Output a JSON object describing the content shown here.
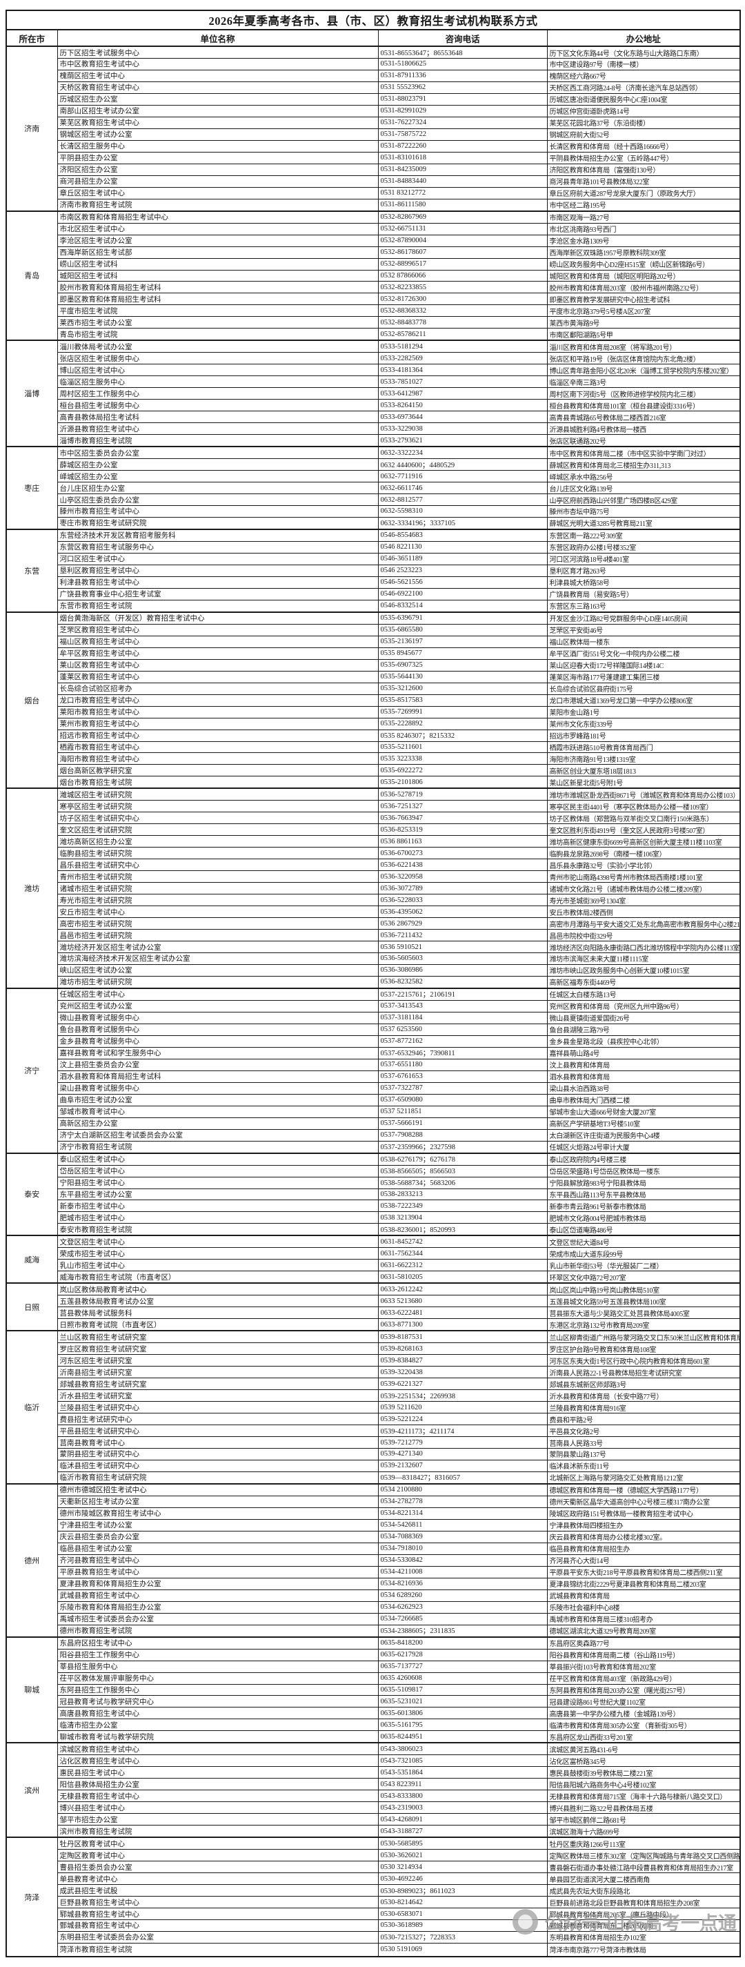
{
  "title": "2026年夏季高考各市、县（市、区）教育招生考试机构联系方式",
  "columns": [
    "所在市",
    "单位名称",
    "咨询电话",
    "办公地址"
  ],
  "watermark": {
    "text": "公众号·山东高考一点通"
  },
  "groups": [
    {
      "city": "济南",
      "rows": [
        [
          "历下区招生考试服务中心",
          "0531-86553647；86553648",
          "历下区文化东路44号（文化东路与山大路路口东南）"
        ],
        [
          "市中区教育招生考试中心",
          "0531-51806625",
          "市中区建设路97号（南楼一楼）"
        ],
        [
          "槐荫区招生考试中心",
          "0531-87911336",
          "槐荫区经六路667号"
        ],
        [
          "天桥区教育招生考试中心",
          "0531 55523962",
          "天桥区西工商河路24-8号（济南长途汽车总站西邻）"
        ],
        [
          "历城区招生办公室",
          "0531-88023791",
          "历城区唐冶街道便民服务中心C座1004室"
        ],
        [
          "南部山区招生考试办公室",
          "0531-82991029",
          "历城区仲宫街道卧虎路14号"
        ],
        [
          "莱芜区教育招生考试中心",
          "0531-76227324",
          "莱芜区花园北路37号（东沿街楼）"
        ],
        [
          "钢城区招生考试办公室",
          "0531-75875722",
          "钢城区府前大街52号"
        ],
        [
          "长清区招生服务中心",
          "0531-87222260",
          "长清区教育和体育局（经十西路16666号）"
        ],
        [
          "平阴县招生办公室",
          "0531-83101618",
          "平阴县教体局招生办公室（五岭路447号）"
        ],
        [
          "济阳区招生办公室",
          "0531-84235009",
          "济阳区教育和体育局（富强街130号）"
        ],
        [
          "商河县招生办公室",
          "0531-84883440",
          "商河县青年路101号县教体局322室"
        ],
        [
          "章丘区招生考试中心",
          "0531 83212772",
          "章丘区府前大道287号龙泉大厦东门（原政务大厅）"
        ],
        [
          "济南市教育招生考试院",
          "0531-86111580",
          "市中区经二路195号"
        ]
      ]
    },
    {
      "city": "青岛",
      "rows": [
        [
          "市南区教育和体育局招生考试中心",
          "0532-82867969",
          "市南区观海一路27号"
        ],
        [
          "市北区招生考试中心",
          "0532-66751131",
          "市北区洮南路93号西门"
        ],
        [
          "李沧区招生考试办公室",
          "0532-87890004",
          "李沧区金水路1309号"
        ],
        [
          "西海岸新区招生考试部",
          "0532-86178607",
          "西海岸新区双珠路1957号原教科院309室"
        ],
        [
          "崂山区招生考试科",
          "0532-88996517",
          "崂山区政务服务中心D2座H515室（崂山区新锦路6号）"
        ],
        [
          "城阳区招生考试科",
          "0532 87866066",
          "城阳区教育和体育局（城阳区明阳路202号）"
        ],
        [
          "胶州市教育和体育局招生考试科",
          "0532-82233855",
          "胶州市教育和体育局203室（胶州市福州南路232号）"
        ],
        [
          "即墨区教育和体育局招生考试科",
          "0532-81726300",
          "即墨区教育教学发展研究中心招生考试科"
        ],
        [
          "平度市招生考试院",
          "0532-88368332",
          "平度市北京路379号5号楼A区207室"
        ],
        [
          "莱西市招生考试办公室",
          "0532-88483778",
          "莱西市黄海路9号"
        ],
        [
          "青岛市招生考试院",
          "0532-85786211",
          "市南区鄱阳湖路5号甲"
        ]
      ]
    },
    {
      "city": "淄博",
      "rows": [
        [
          "淄川教体局考试办公室",
          "0533-5181294",
          "淄川区教育和体育局208室（将军路201号）"
        ],
        [
          "张店区招生考试服务中心",
          "0533-2282569",
          "张店区和平路19号（张店区体育馆院内东北角2楼）"
        ],
        [
          "博山区招生考试中心",
          "0533-4181364",
          "博山区青年路金阳小区北20米（淄博工贸学校院内东楼202室）"
        ],
        [
          "临淄区招生服务中心",
          "0533-7851027",
          "临淄区辛南三路3号"
        ],
        [
          "周村区招生工作服务中心",
          "0533-6412987",
          "周村区南下河街5号（区教师进修学校院内北三楼）"
        ],
        [
          "桓台县招生考试服务中心",
          "0533-8264150",
          "桓台县教育和体育局101室（桓台县建设街3316号）"
        ],
        [
          "高青县教体局招生考试科",
          "0533-6973644",
          "高青县青城路65号教体局二楼西首216室"
        ],
        [
          "沂源县教育招生考试中心",
          "0533-3229038",
          "沂源县城胜利路4号教体局一楼西"
        ],
        [
          "淄博市教育招生考试院",
          "0533-2793621",
          "张店区联通路202号"
        ]
      ]
    },
    {
      "city": "枣庄",
      "rows": [
        [
          "市中区招生委员会办公室",
          "0632-3322234",
          "市中区教育和体育局二楼（市中区实验中学南门对过）"
        ],
        [
          "薛城区招生办公室",
          "0632 4440600；4480529",
          "薛城区教育和体育局北三楼招生办311,313"
        ],
        [
          "峄城区招生办公室",
          "0632-7711916",
          "峄城区承水中路256号"
        ],
        [
          "台儿庄区招生办公室",
          "0632-6611746",
          "台儿庄区文化路139号"
        ],
        [
          "山亭区招生委员会办公室",
          "0632-8812577",
          "山亭区府前西路山兴邻里广场四楼B区429室"
        ],
        [
          "滕州市教育招生考试中心",
          "0632-5598310",
          "滕州市杏坛中路75号"
        ],
        [
          "枣庄市教育招生考试研究院",
          "0632-3334196；3337105",
          "薛城区光明大道3285号教育局211室"
        ]
      ]
    },
    {
      "city": "东营",
      "rows": [
        [
          "东营经济技术开发区教育招考服务科",
          "0546-8554683",
          "东营区南一路222号309室"
        ],
        [
          "东营区教育招生考试服务中心",
          "0546 8221130",
          "东营区政府办公楼1号楼352室"
        ],
        [
          "河口区招生考试中心",
          "0546-3651189",
          "河口区河滨路18号4楼401室"
        ],
        [
          "垦利区教育招生考试中心",
          "0546 2523223",
          "垦利区育才路263号"
        ],
        [
          "利津县教育招生考试中心",
          "0546-5621556",
          "利津县城大桥路58号"
        ],
        [
          "广饶县教育事业中心招生考试室",
          "0546-6922100",
          "广饶县教育局（易安路5号）"
        ],
        [
          "东营市教育招生考试院",
          "0546-8332514",
          "东营区东三路163号"
        ]
      ]
    },
    {
      "city": "烟台",
      "rows": [
        [
          "烟台黄渤海新区（开发区）教育招生考试中心",
          "0535-6396791",
          "开发区金沙江路82号党群服务中心D座1405房间"
        ],
        [
          "芝罘区教育招生考试中心",
          "0535-6865580",
          "芝罘区平安街46号"
        ],
        [
          "福山区教育招生考试中心",
          "0535-2136197",
          "福山区教体局一楼东"
        ],
        [
          "牟平区教育招生考试中心",
          "0535 8945677",
          "牟平区酒厂街551号文化一中院内办公楼二楼"
        ],
        [
          "莱山区教育招生考试中心",
          "0535-6907325",
          "莱山区迎春大街172号祥隆国际14楼14C"
        ],
        [
          "蓬莱区教育招生考试中心",
          "0535-5644130",
          "蓬莱区海市路177号蓬建建工集团三楼"
        ],
        [
          "长岛综合试验区招考办",
          "0535-3212600",
          "长岛综合试验区县府街175号"
        ],
        [
          "龙口市教育招生考试中心",
          "0535-8517583",
          "龙口市港城大道1369号龙口第一中学办公楼806室"
        ],
        [
          "莱阳市教育招生考试中心",
          "0535-7269991",
          "莱阳市金山路1号"
        ],
        [
          "莱州市教育招生考试中心",
          "0535-2228892",
          "莱州市文化东街339号"
        ],
        [
          "招远市教育招生考试中心",
          "0535 8246307；8215332",
          "招远市罗峰路181号"
        ],
        [
          "栖霞市教育招生考试中心",
          "0535-5211601",
          "栖霞市跃进路510号教育体育局西门"
        ],
        [
          "海阳市教育招生考试中心",
          "0535 3223338",
          "海阳市济南路91号13楼1319室"
        ],
        [
          "烟台高新区教学研究室",
          "0535-6922272",
          "高新区创业大厦东塔18层1813"
        ],
        [
          "烟台市教育招生考试院",
          "0535-2101806",
          "莱山区新星北街5号附1号"
        ]
      ]
    },
    {
      "city": "潍坊",
      "rows": [
        [
          "潍城区招生考试研究院",
          "0536-5278719",
          "潍坊市潍城区卧龙西街8671号（潍城区教育和体育局办公楼103）"
        ],
        [
          "寒亭区招生考试研究院",
          "0536-7251327",
          "寒亭区民主街4401号（寒亭区教体局办公楼一楼109室）"
        ],
        [
          "坊子区招生考试研究中心",
          "0536-7663947",
          "坊子区教体局（郑营路与双羊街交叉口南行150米路东）"
        ],
        [
          "奎文区招生考试研究院",
          "0536-8253319",
          "奎文区胜利东街4919号（奎文区人民政府3号楼507室）"
        ],
        [
          "潍坊高新区招生办公室",
          "0536 8861163",
          "潍坊高新区健康东街6699号高新区创新大厦主楼11楼1103室"
        ],
        [
          "临朐县招生考试研究院",
          "0536-6700273",
          "临朐县龙泉路2698号（南楼一楼106室）"
        ],
        [
          "昌乐县招生考试研究中心",
          "0536-6221438",
          "昌乐县永康路32号（实验小学北邻）"
        ],
        [
          "青州市招生考试研究院",
          "0536-3220958",
          "青州市驼山南路4398号青州市教体局西南楼1楼101室"
        ],
        [
          "诸城市招生考试研究院",
          "0536-3072789",
          "诸城市文化路21号（诸城市教体局办公楼二楼209室）"
        ],
        [
          "寿光市招生考试研究院",
          "0536-5228033",
          "寿光市圣城街369号1304室"
        ],
        [
          "安丘市招生考试中心",
          "0536-4395062",
          "安丘市教体局2楼西侧"
        ],
        [
          "高密市招生考试研究院",
          "0536 2867929",
          "高密市月潭路与平安大道交汇处东北角高密市教育服务中心2楼212室"
        ],
        [
          "昌邑市招生考试研究院",
          "0536-7211432",
          "昌邑市院校中街329号"
        ],
        [
          "潍坊经济开发区招生考试办公室",
          "0536 5910521",
          "潍坊经济区向阳路永康街路口西北潍坊锦程中学院内办公楼113室"
        ],
        [
          "潍坊滨海经济技术开发区招生考试办公室",
          "0536-5605603",
          "潍坊市滨海区未来大厦11楼1115室"
        ],
        [
          "峡山区招生考试办公室",
          "0536-3086986",
          "潍坊市峡山区政务服务中心创新大厦10楼1015室"
        ],
        [
          "潍坊市招生考试研究院",
          "0536-8232582",
          "高新区福寿东街4469号"
        ]
      ]
    },
    {
      "city": "济宁",
      "rows": [
        [
          "任城区招生考试中心",
          "0537-2215761；2106191",
          "任城区太白楼东路13号"
        ],
        [
          "兖州区招生考试办公室",
          "0537-3413543",
          "兖州区教育和体育局（兖州区九州中路96号）"
        ],
        [
          "微山县教育考试服务中心",
          "0537-3181184",
          "微山县夏镇街道爱国街26号"
        ],
        [
          "鱼台县教育考试服务中心",
          "0537 6253560",
          "鱼台县湖陵三路79号"
        ],
        [
          "金乡县教育考试服务中心",
          "0537-8772162",
          "金乡县金星路北段（县疾控中心北邻）"
        ],
        [
          "嘉祥县教育考试和学生服务中心",
          "0537-6532946；7390811",
          "嘉祥县萌山路4号"
        ],
        [
          "汶上县招生委员会办公室",
          "0537-6551180",
          "汶上县教育和体育局"
        ],
        [
          "泗水县教育和体育局招生考试科",
          "0537-6761653",
          "泗水县教育和体育局"
        ],
        [
          "梁山县教育考试服务中心",
          "0537-7322787",
          "梁山县水泊西路38号"
        ],
        [
          "曲阜市招生考试办公室",
          "0537-6509080",
          "曲阜市教体局大门西楼二楼"
        ],
        [
          "邹城市教育考试中心",
          "0537 5211851",
          "邹城市金山大道666号财金大厦207室"
        ],
        [
          "高新区招生办公室",
          "0537-5666191",
          "高新区产学研基地T3号楼510室"
        ],
        [
          "济宁太白湖新区招生考试委员会办公室",
          "0537-7908288",
          "太白湖新区许庄街道为民服务中心4楼"
        ],
        [
          "济宁市教育招生考试院",
          "0537-2359966；2327598",
          "任城区火炬路24号审计大厦"
        ]
      ]
    },
    {
      "city": "泰安",
      "rows": [
        [
          "泰山区招生考试中心",
          "0538-6276179；6276178",
          "泰山区政府院内4号楼三楼"
        ],
        [
          "岱岳区招生考试中心",
          "0538-8566505；8566503",
          "岱岳区荣盛路1号岱岳区教体局一楼东"
        ],
        [
          "宁阳县招生考试中心",
          "0538-5688734；5683206",
          "宁阳县解放路983号宁阳县教体局"
        ],
        [
          "东平县招生考试办公室",
          "0538-2833213",
          "东平县西山路113号东平县教体局"
        ],
        [
          "新泰市招生考试中心",
          "0538-7222349",
          "新泰市青云路961号新泰市教体局"
        ],
        [
          "肥城市招生考试中心",
          "0538 3213904",
          "肥城市文化路004号肥城市教体局"
        ],
        [
          "泰安市教育招生考试院",
          "0538-8236001；8520993",
          "泰山区岱道庵路486号"
        ]
      ]
    },
    {
      "city": "威海",
      "rows": [
        [
          "文登区招生考试中心",
          "0631-8452742",
          "文登区世纪大道84号"
        ],
        [
          "荣成市招生考试中心",
          "0631-7562344",
          "荣成市成山大道东段99号"
        ],
        [
          "乳山市招生考试中心",
          "0631-6622312",
          "乳山市新华街53号（华光服装厂二楼）"
        ],
        [
          "威海市教育招生考试院（市直考区）",
          "0631-5810205",
          "环翠区文化中路72号207室"
        ]
      ]
    },
    {
      "city": "日照",
      "rows": [
        [
          "岚山区教体局教育考试中心",
          "0633-2612242",
          "岚山区岚山中路19号岚山教体局510室"
        ],
        [
          "五莲县教体局教育考试办公室",
          "0633 5213680",
          "五莲县城文化路59号五莲县教体局100室"
        ],
        [
          "莒县教体局考试服务科",
          "0633-6222481",
          "莒县振东大道与少昊路交汇处莒县教体局4005室"
        ],
        [
          "日照市教育考试院（市直考区）",
          "0633-8771300",
          "东港区北京路132号市教育局209室"
        ]
      ]
    },
    {
      "city": "临沂",
      "rows": [
        [
          "兰山区教育招生考试研究室",
          "0539-8187531",
          "兰山区柳青街道广州路与蒙河路交叉口东50米兰山区教育和体育局"
        ],
        [
          "罗庄区教育招生考试研究室",
          "0539-8268163",
          "罗庄区护台路9号教育和体育局108室"
        ],
        [
          "河东区招生考试研究室",
          "0539-8384827",
          "河东区东夷大街1号区行政中心院内教育和体育局601室"
        ],
        [
          "沂南县招生考试研究室",
          "0539-3220438",
          "沂南县人民路22-1号县教体局招生考试研究室"
        ],
        [
          "郯城县教育招生考试研究室",
          "0539-6221327",
          "郯城县东城新区师郯路3号"
        ],
        [
          "沂水县招生考试研究室",
          "0539-2251534；2269938",
          "沂水县教育和体育局（长安中路77号）"
        ],
        [
          "兰陵县招生考试研究中心",
          "0539 5211620",
          "兰陵县教育和体育局916室"
        ],
        [
          "费县招生考试研究中心",
          "0539-5221224",
          "费县和平路2号"
        ],
        [
          "平邑县招生考试研究中心",
          "0539-4211173；4211174",
          "平邑县文化路2号"
        ],
        [
          "莒南县教育考试中心",
          "0539-7212779",
          "莒南县人民路33号"
        ],
        [
          "蒙阴县招生考试研究中心",
          "0539-4271340",
          "蒙阴县蒙山路137号"
        ],
        [
          "临沭县招生考试研究中心",
          "0539-2132607",
          "临沭县沭新东街11号"
        ],
        [
          "临沂市教育招生考试研究院",
          "0539—8318427；8316057",
          "北城新区上海路与蒙河路交汇处教育局1212室"
        ]
      ]
    },
    {
      "city": "德州",
      "rows": [
        [
          "德州市德城区招生考试中心",
          "0534 2100880",
          "德城区教育和体育局一楼（德城区大学西路1177号）"
        ],
        [
          "天衢新区招生考试办公室",
          "0534-2782778",
          "德州天衢新区晶华大道高创中心2号楼三楼317南办公室"
        ],
        [
          "德州市陵城区教育招生考试中心",
          "0534-8221314",
          "陵城区政府路151号教体局一楼教育招生考试中心"
        ],
        [
          "宁津县招生考试办公室",
          "0534-5426811",
          "宁津县教体局四楼招生办"
        ],
        [
          "庆云县招生委员会办公室",
          "0534-7088369",
          "庆云县教育和体育局办公楼北楼302室。"
        ],
        [
          "临邑县招生考试办公室",
          "0534-7918010",
          "临邑县教育和体育局招生办"
        ],
        [
          "齐河县教育招生考试中心",
          "0534-5330842",
          "齐河县齐心大街14号"
        ],
        [
          "平原县教育招生考试中心",
          "0534-4211008",
          "平原县平安东大街218号平原县教育和体育局二楼西侧211室"
        ],
        [
          "夏津县教育和体育局招生办公室",
          "0534-8216936",
          "夏津县锦纺北街2229号夏津县教育和体育局二楼203室"
        ],
        [
          "武城县教育招生考试中心",
          "0534 6289260",
          "武城县教育和体育局"
        ],
        [
          "乐陵市教育和体育局招生办公室",
          "0534-6262923",
          "乐陵市社会福利中心8楼"
        ],
        [
          "禹城市招生考试委员会办公室",
          "0534-7266685",
          "禹城市教育和体育局三楼310招考办"
        ],
        [
          "德州市教育招生考试院",
          "0534-2388605；2311835",
          "德城区湖滨北大道329号教育局209室"
        ]
      ]
    },
    {
      "city": "聊城",
      "rows": [
        [
          "东昌府区招生考试中心",
          "0635-8418200",
          "东昌府区奥森路77号"
        ],
        [
          "阳谷县招生工作服务中心",
          "0635-6217928",
          "阳谷县教育和体育局南二楼（谷山路119号）"
        ],
        [
          "莘县招生服务中心",
          "0635-7137727",
          "莘县振兴街103号教育和体育局202室"
        ],
        [
          "茌平区教体发展评审服务中心",
          "0635 4260608",
          "茌平区教育和体育局403室（新政路429号）"
        ],
        [
          "东阿县招生工作服务中心",
          "0635-5109817",
          "东阿县教育和体育局203办公室（曙光街257号）"
        ],
        [
          "冠县教育考试与教学研究中心",
          "0635-5231021",
          "冠县建设路861号世纪大厦1102室"
        ],
        [
          "高唐县教育招生考试中心",
          "0635-6013806",
          "高唐县第一中学办公楼九楼（金城路139号）"
        ],
        [
          "临清市招生办公室",
          "0635-5161795",
          "临清市教育和体育局305办公室 （育新街305号）"
        ],
        [
          "聊城市教育考试与教学研究院",
          "0635-8244951",
          "东昌府区龙山西街33号201室"
        ]
      ]
    },
    {
      "city": "滨州",
      "rows": [
        [
          "滨城区教育招生考试中心",
          "0543-3806023",
          "滨城区黄河五路431-6号"
        ],
        [
          "沾化区教育招生考试中心",
          "0543-7321085",
          "沾化区富桥路345号"
        ],
        [
          "惠民县招生考试中心",
          "0543-5351864",
          "惠民县鼓楼街39号教体局二楼221室"
        ],
        [
          "阳信县教体局招生办公室",
          "0543 8223911",
          "阳信县阳城六路商务中心4号楼102室"
        ],
        [
          "无棣县教育招生考试中心",
          "0543-8333800",
          "无棣县教育和体育局715室（海丰十六路与棣新八路交叉口）"
        ],
        [
          "博兴县招生考试中心",
          "0543-2319003",
          "博兴县胜利二路322号县教体局五楼"
        ],
        [
          "邹平市招生办公室",
          "0543-4268091",
          "邹平市城区鹤伴二路681号"
        ],
        [
          "滨州市教育招生考试院",
          "0543-3188727",
          "滨城区渤海十六路699号"
        ]
      ]
    },
    {
      "city": "菏泽",
      "rows": [
        [
          "牡丹区教育考试中心",
          "0530-5685895",
          "牡丹区重庆路1266号113室"
        ],
        [
          "定陶区教育考试中心",
          "0530-3626021",
          "定陶区教体局三楼东302室（定陶区陶城路与青年路交叉口西侧路北）"
        ],
        [
          "曹县招生委员会办公室",
          "0530 3214934",
          "曹县磐石街道办事处赣江路中段曹县教育和体育局招生办217室"
        ],
        [
          "单县教育考试中心",
          "0530-4692246",
          "单县园艺街道滨河大厦二楼西南角"
        ],
        [
          "成武县招生考试股",
          "0530-8989023；8611023",
          "成武县先农坛大街东段路北"
        ],
        [
          "巨野县教育招生考试中心",
          "0530-8214642",
          "巨野县前进路北段巨野县教育和体育局招生办208室"
        ],
        [
          "郓城县教育招生考试中心",
          "0530-6583071",
          "郓城县教育和体育局205室（廪丘路中段）"
        ],
        [
          "鄄城县教育招生考试中心",
          "0530-3618989",
          "鄄城县教育和体育局东二楼205房间"
        ],
        [
          "东明县招生考试委员会办公室",
          "0530-7215327；7228353",
          "东明县教育和体育局招生办102室"
        ],
        [
          "菏泽市教育招生考试院",
          "0530 5191069",
          "菏泽市南京路777号菏泽市教体局"
        ]
      ]
    }
  ]
}
